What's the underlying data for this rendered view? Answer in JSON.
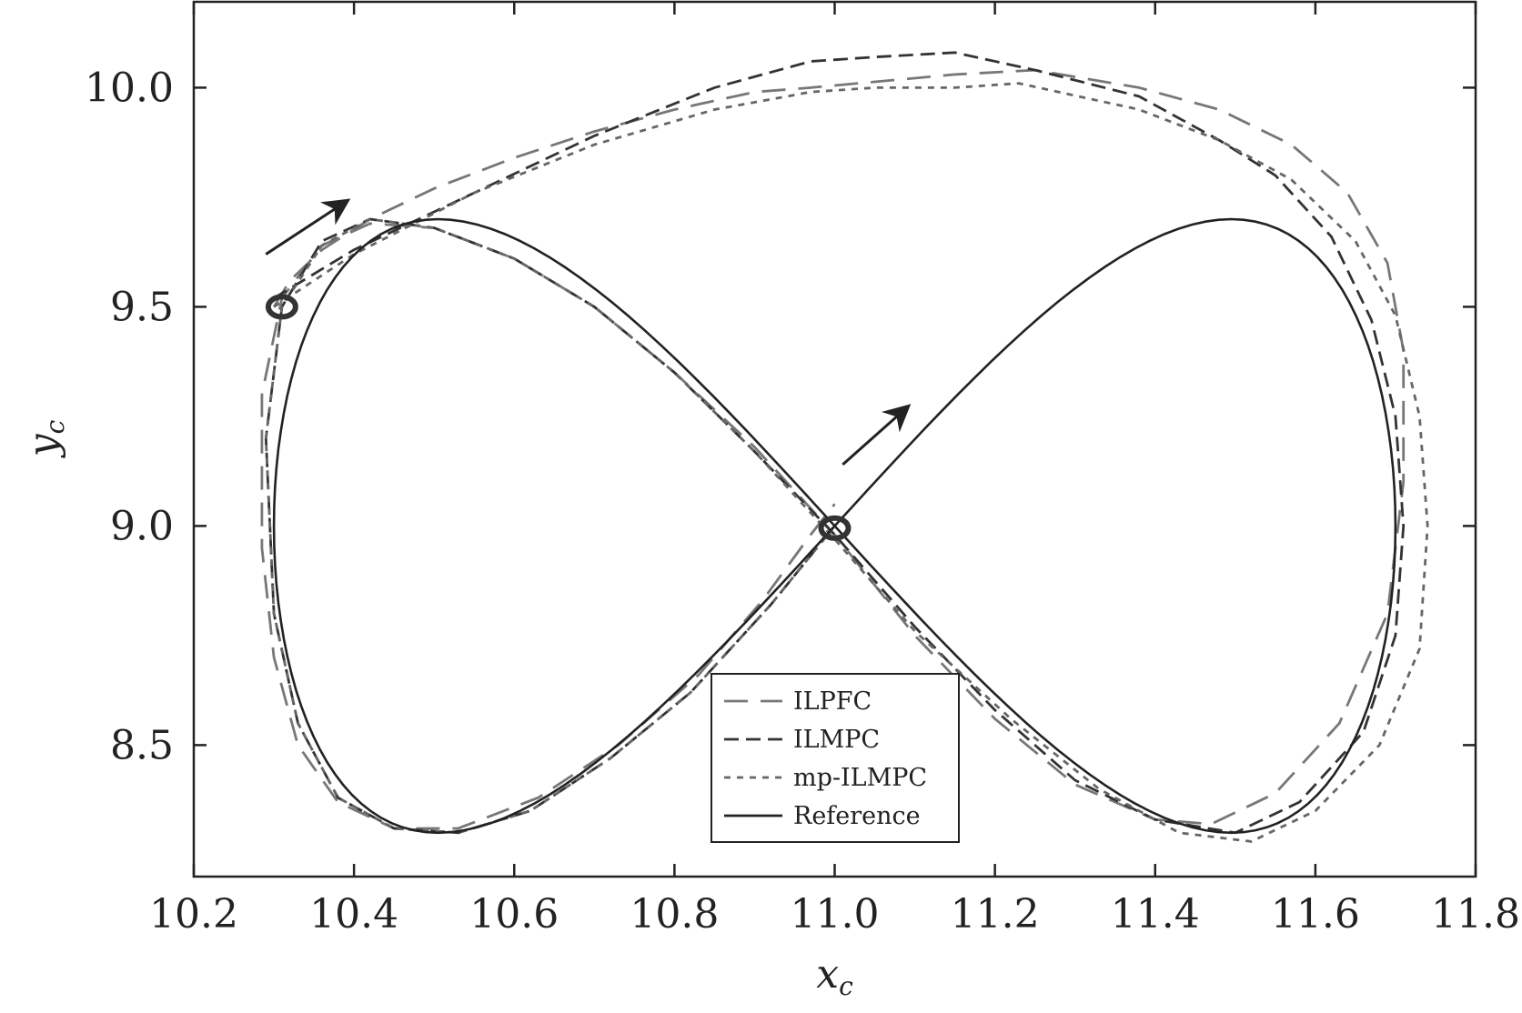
{
  "chart_data": {
    "type": "line",
    "title": "",
    "xlabel": "x",
    "xlabel_sub": "c",
    "ylabel": "y",
    "ylabel_sub": "c",
    "xlim": [
      10.2,
      11.8
    ],
    "ylim": [
      8.2,
      10.2
    ],
    "xticks": [
      10.2,
      10.4,
      10.6,
      10.8,
      11.0,
      11.2,
      11.4,
      11.6,
      11.8
    ],
    "yticks": [
      8.5,
      9.0,
      9.5,
      10.0
    ],
    "xtick_labels": [
      "10.2",
      "10.4",
      "10.6",
      "10.8",
      "11.0",
      "11.2",
      "11.4",
      "11.6",
      "11.8"
    ],
    "ytick_labels": [
      "8.5",
      "9.0",
      "9.5",
      "10.0"
    ],
    "grid": false,
    "legend_position": "bottom-center",
    "series": [
      {
        "name": "ILPFC",
        "style": "long-dash",
        "color": "#777777",
        "x": [
          10.3,
          10.32,
          10.36,
          10.42,
          10.5,
          10.6,
          10.7,
          10.8,
          10.9,
          10.97,
          11.03,
          11.15,
          11.25,
          11.38,
          11.48,
          11.57,
          11.64,
          11.69,
          11.71,
          11.71,
          11.69,
          11.63,
          11.55,
          11.47,
          11.4,
          11.3,
          11.2,
          11.1,
          11.0,
          10.9,
          10.8,
          10.7,
          10.6,
          10.5,
          10.42,
          10.36,
          10.31,
          10.285,
          10.285,
          10.3,
          10.33,
          10.38,
          10.45,
          10.53,
          10.63,
          10.73,
          10.83,
          10.91,
          10.97,
          11.0
        ],
        "y": [
          9.5,
          9.56,
          9.63,
          9.7,
          9.77,
          9.84,
          9.9,
          9.95,
          9.99,
          10.0,
          10.01,
          10.03,
          10.04,
          10.0,
          9.95,
          9.87,
          9.76,
          9.6,
          9.4,
          9.1,
          8.8,
          8.55,
          8.39,
          8.32,
          8.33,
          8.41,
          8.56,
          8.75,
          8.98,
          9.18,
          9.35,
          9.5,
          9.61,
          9.68,
          9.69,
          9.64,
          9.52,
          9.3,
          8.95,
          8.7,
          8.5,
          8.37,
          8.31,
          8.31,
          8.38,
          8.5,
          8.66,
          8.83,
          8.98,
          9.05
        ]
      },
      {
        "name": "ILMPC",
        "style": "dash",
        "color": "#333333",
        "x": [
          10.3,
          10.4,
          10.55,
          10.7,
          10.85,
          10.97,
          11.05,
          11.15,
          11.25,
          11.38,
          11.48,
          11.55,
          11.62,
          11.67,
          11.7,
          11.71,
          11.7,
          11.66,
          11.58,
          11.5,
          11.4,
          11.3,
          11.2,
          11.1,
          11.0,
          10.9,
          10.8,
          10.7,
          10.6,
          10.5,
          10.42,
          10.36,
          10.31,
          10.29,
          10.3,
          10.33,
          10.38,
          10.45,
          10.53,
          10.62,
          10.72,
          10.82,
          10.92,
          11.0
        ],
        "y": [
          9.52,
          9.63,
          9.76,
          9.89,
          10.0,
          10.06,
          10.07,
          10.08,
          10.04,
          9.98,
          9.88,
          9.8,
          9.66,
          9.47,
          9.25,
          9.0,
          8.75,
          8.53,
          8.37,
          8.3,
          8.33,
          8.42,
          8.58,
          8.77,
          8.98,
          9.17,
          9.35,
          9.5,
          9.61,
          9.68,
          9.7,
          9.65,
          9.5,
          9.2,
          8.8,
          8.55,
          8.38,
          8.31,
          8.3,
          8.35,
          8.47,
          8.62,
          8.82,
          9.0
        ]
      },
      {
        "name": "mp-ILMPC",
        "style": "short-dash",
        "color": "#666666",
        "x": [
          10.3,
          10.4,
          10.55,
          10.7,
          10.85,
          10.97,
          11.05,
          11.15,
          11.23,
          11.38,
          11.48,
          11.57,
          11.65,
          11.7,
          11.73,
          11.74,
          11.73,
          11.68,
          11.6,
          11.52,
          11.43,
          11.33,
          11.22,
          11.1,
          11.0,
          10.9,
          10.8,
          10.7,
          10.6,
          10.5,
          10.42,
          10.36,
          10.31,
          10.29,
          10.3,
          10.33,
          10.38,
          10.45,
          10.53,
          10.62,
          10.72,
          10.82,
          10.92,
          11.0
        ],
        "y": [
          9.5,
          9.62,
          9.76,
          9.87,
          9.95,
          9.99,
          10.0,
          10.0,
          10.01,
          9.95,
          9.88,
          9.79,
          9.65,
          9.48,
          9.25,
          9.0,
          8.72,
          8.5,
          8.35,
          8.28,
          8.3,
          8.4,
          8.56,
          8.76,
          8.97,
          9.17,
          9.35,
          9.5,
          9.61,
          9.68,
          9.7,
          9.64,
          9.5,
          9.2,
          8.8,
          8.55,
          8.38,
          8.31,
          8.3,
          8.35,
          8.47,
          8.62,
          8.82,
          9.0
        ]
      },
      {
        "name": "Reference",
        "style": "solid",
        "color": "#222222",
        "parametric": "lemniscate",
        "x_center": 11.0,
        "y_center": 9.0,
        "x_amplitude": 0.7,
        "y_amplitude": 0.7
      }
    ],
    "markers": [
      {
        "name": "start-marker-ilc",
        "x": 10.31,
        "y": 9.5
      },
      {
        "name": "start-marker-reference",
        "x": 11.0,
        "y": 8.995
      }
    ],
    "direction_arrows": [
      {
        "name": "direction-arrow-upper",
        "x1": 10.29,
        "y1": 9.62,
        "x2": 10.39,
        "y2": 9.74
      },
      {
        "name": "direction-arrow-center",
        "x1": 11.01,
        "y1": 9.14,
        "x2": 11.09,
        "y2": 9.27
      }
    ]
  }
}
